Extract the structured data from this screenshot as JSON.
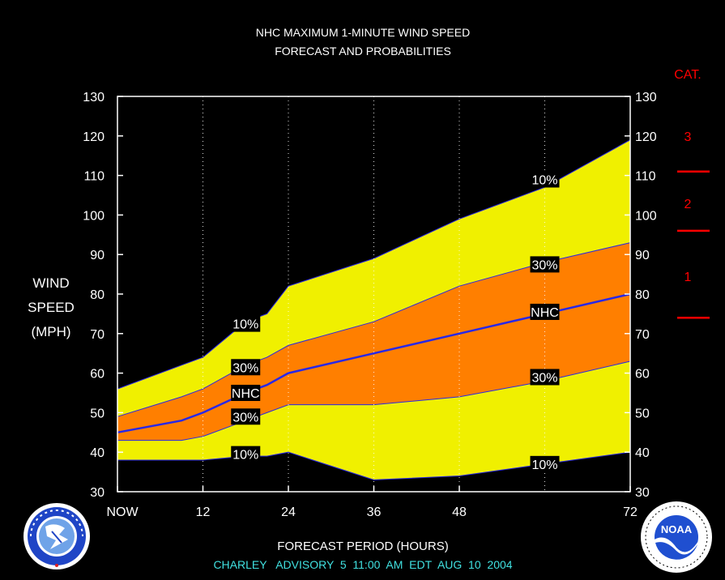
{
  "chart_data": {
    "type": "area",
    "title": "NHC MAXIMUM 1-MINUTE WIND SPEED",
    "subtitle": "FORECAST AND PROBABILITIES",
    "ylabel": [
      "WIND",
      "SPEED",
      "(MPH)"
    ],
    "xlabel": "FORECAST PERIOD (HOURS)",
    "advisory": "CHARLEY   ADVISORY  5  11:00  AM  EDT  AUG  10  2004",
    "xlim": [
      0,
      72
    ],
    "ylim": [
      30,
      130
    ],
    "yticks": [
      30,
      40,
      50,
      60,
      70,
      80,
      90,
      100,
      110,
      120,
      130
    ],
    "xticks": [
      {
        "x": 0,
        "label": "NOW"
      },
      {
        "x": 12,
        "label": "12"
      },
      {
        "x": 24,
        "label": "24"
      },
      {
        "x": 36,
        "label": "36"
      },
      {
        "x": 48,
        "label": "48"
      },
      {
        "x": 72,
        "label": "72"
      }
    ],
    "grid_x": [
      12,
      24,
      36,
      48,
      60
    ],
    "x": [
      0,
      9,
      12,
      18,
      21,
      24,
      36,
      48,
      60,
      72
    ],
    "series": [
      {
        "name": "10%",
        "band": "upper",
        "values": [
          56,
          62,
          64,
          73,
          75,
          82,
          89,
          99,
          107,
          119
        ]
      },
      {
        "name": "30%",
        "band": "upper",
        "values": [
          49,
          54,
          56,
          62,
          64,
          67,
          73,
          82,
          88,
          93
        ]
      },
      {
        "name": "NHC",
        "values": [
          45,
          48,
          50,
          55,
          57,
          60,
          65,
          70,
          75,
          80
        ]
      },
      {
        "name": "30%",
        "band": "lower",
        "values": [
          43,
          43,
          44,
          48,
          50,
          52,
          52,
          54,
          58,
          63
        ]
      },
      {
        "name": "10%",
        "band": "lower",
        "values": [
          38,
          38,
          38,
          39,
          39,
          40,
          33,
          34,
          37,
          40
        ]
      }
    ],
    "point_labels": [
      {
        "text": "10%",
        "x": 18,
        "y": 72.5
      },
      {
        "text": "30%",
        "x": 18,
        "y": 61.5
      },
      {
        "text": "NHC",
        "x": 18,
        "y": 55
      },
      {
        "text": "30%",
        "x": 18,
        "y": 49
      },
      {
        "text": "10%",
        "x": 18,
        "y": 39.5
      },
      {
        "text": "10%",
        "x": 60,
        "y": 109
      },
      {
        "text": "30%",
        "x": 60,
        "y": 87.5
      },
      {
        "text": "NHC",
        "x": 60,
        "y": 75.5
      },
      {
        "text": "30%",
        "x": 60,
        "y": 59
      },
      {
        "text": "10%",
        "x": 60,
        "y": 37
      }
    ],
    "categories": {
      "header": "CAT.",
      "labels": [
        {
          "text": "3",
          "y": 120
        },
        {
          "text": "2",
          "y": 103
        },
        {
          "text": "1",
          "y": 84.5
        }
      ],
      "thresholds": [
        111,
        96,
        74
      ]
    },
    "colors": {
      "background": "#000000",
      "band_10": "#F0F000",
      "band_30": "#FF7F00",
      "nhc_line": "#2828E8",
      "outline": "#2828E8",
      "category": "#FF0000",
      "advisory_text": "#40E0E0",
      "text": "#FFFFFF"
    }
  },
  "logos": {
    "left": {
      "name": "nws-logo",
      "text": "NATIONAL WEATHER SERVICE"
    },
    "right": {
      "name": "noaa-logo",
      "text": "NOAA"
    }
  }
}
